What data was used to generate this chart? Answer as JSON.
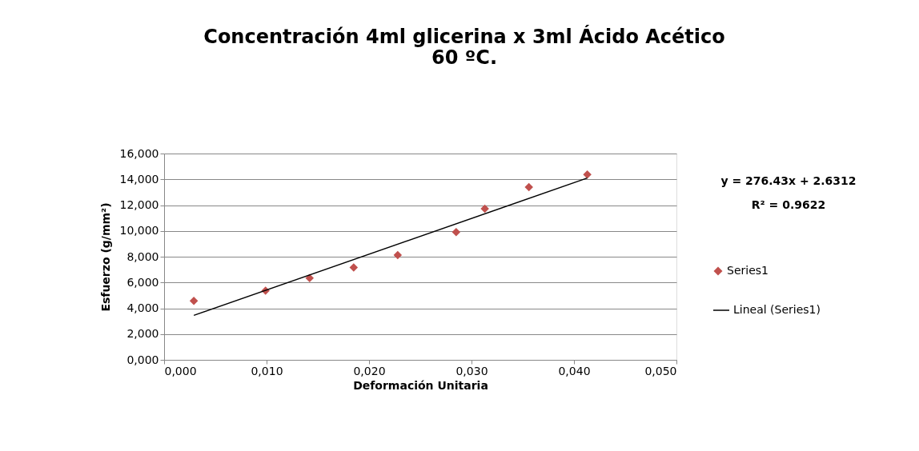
{
  "chart_data": {
    "type": "scatter",
    "title": "Concentración 4ml glicerina x 3ml Ácido Acético\n60 ºC.",
    "xlabel": "Deformación Unitaria",
    "ylabel": "Esfuerzo (g/mm²)",
    "x": [
      0.0029,
      0.0099,
      0.0142,
      0.0185,
      0.0228,
      0.0285,
      0.0313,
      0.0356,
      0.0413
    ],
    "series": [
      {
        "name": "Series1",
        "color": "#c0504d",
        "marker": "diamond",
        "values": [
          4.57,
          5.36,
          6.34,
          7.17,
          8.12,
          9.91,
          11.72,
          13.4,
          14.37
        ]
      },
      {
        "name": "Lineal (Series1)",
        "type": "line",
        "color": "#000000",
        "line_style": "solid",
        "x": [
          0.0029,
          0.0413
        ],
        "values": [
          3.45,
          14.1
        ]
      }
    ],
    "xlim": [
      0,
      0.05
    ],
    "xticks": [
      {
        "value": 0,
        "label": "0,000"
      },
      {
        "value": 0.01,
        "label": "0,010"
      },
      {
        "value": 0.02,
        "label": "0,020"
      },
      {
        "value": 0.03,
        "label": "0,030"
      },
      {
        "value": 0.04,
        "label": "0,040"
      },
      {
        "value": 0.05,
        "label": "0,050"
      }
    ],
    "ylim": [
      0,
      16
    ],
    "yticks": [
      {
        "value": 0,
        "label": "0,000"
      },
      {
        "value": 2,
        "label": "2,000"
      },
      {
        "value": 4,
        "label": "4,000"
      },
      {
        "value": 6,
        "label": "6,000"
      },
      {
        "value": 8,
        "label": "8,000"
      },
      {
        "value": 10,
        "label": "10,000"
      },
      {
        "value": 12,
        "label": "12,000"
      },
      {
        "value": 14,
        "label": "14,000"
      },
      {
        "value": 16,
        "label": "16,000"
      }
    ],
    "grid": "y",
    "legend": "right",
    "annotations": [
      "y = 276.43x + 2.6312",
      "R² = 0.9622"
    ]
  }
}
